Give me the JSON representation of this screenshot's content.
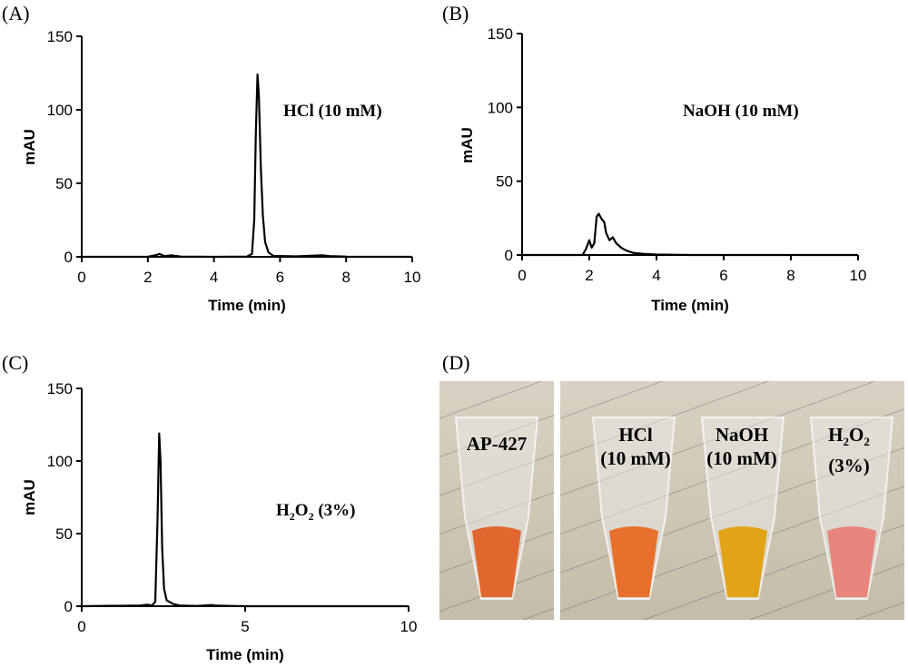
{
  "panels": {
    "a": {
      "letter": "(A)"
    },
    "b": {
      "letter": "(B)"
    },
    "c": {
      "letter": "(C)"
    },
    "d": {
      "letter": "(D)"
    }
  },
  "chart_data": [
    {
      "type": "line",
      "panel": "A",
      "annotation": "HCl (10 mM)",
      "xlabel": "Time (min)",
      "ylabel": "mAU",
      "xlim": [
        0,
        10
      ],
      "ylim": [
        0,
        150
      ],
      "xticks": [
        "0",
        "2",
        "4",
        "6",
        "8",
        "10"
      ],
      "yticks": [
        "0",
        "50",
        "100",
        "150"
      ],
      "series": [
        {
          "points": [
            [
              0,
              0
            ],
            [
              2.0,
              0
            ],
            [
              2.25,
              1.2
            ],
            [
              2.35,
              2
            ],
            [
              2.5,
              0.5
            ],
            [
              2.7,
              1
            ],
            [
              3.0,
              0.2
            ],
            [
              4.0,
              0
            ],
            [
              5.0,
              0.2
            ],
            [
              5.15,
              2
            ],
            [
              5.22,
              25
            ],
            [
              5.27,
              85
            ],
            [
              5.32,
              124
            ],
            [
              5.36,
              110
            ],
            [
              5.42,
              60
            ],
            [
              5.48,
              28
            ],
            [
              5.55,
              10
            ],
            [
              5.65,
              3
            ],
            [
              5.8,
              0.6
            ],
            [
              6.5,
              0.3
            ],
            [
              7.0,
              0.8
            ],
            [
              7.3,
              1
            ],
            [
              7.5,
              0.5
            ],
            [
              8,
              0.2
            ],
            [
              10,
              0
            ]
          ]
        }
      ]
    },
    {
      "type": "line",
      "panel": "B",
      "annotation": "NaOH (10 mM)",
      "xlabel": "Time (min)",
      "ylabel": "mAU",
      "xlim": [
        0,
        10
      ],
      "ylim": [
        0,
        150
      ],
      "xticks": [
        "0",
        "2",
        "4",
        "6",
        "8",
        "10"
      ],
      "yticks": [
        "0",
        "50",
        "100",
        "150"
      ],
      "series": [
        {
          "points": [
            [
              0,
              0
            ],
            [
              1.8,
              0
            ],
            [
              1.9,
              4
            ],
            [
              2.0,
              10
            ],
            [
              2.07,
              5
            ],
            [
              2.15,
              8
            ],
            [
              2.22,
              26
            ],
            [
              2.28,
              28
            ],
            [
              2.35,
              25
            ],
            [
              2.45,
              22
            ],
            [
              2.5,
              15
            ],
            [
              2.6,
              10
            ],
            [
              2.7,
              12
            ],
            [
              2.8,
              8
            ],
            [
              2.95,
              5
            ],
            [
              3.1,
              3
            ],
            [
              3.3,
              1.5
            ],
            [
              3.6,
              0.8
            ],
            [
              4,
              0.3
            ],
            [
              5,
              0
            ],
            [
              10,
              0
            ]
          ]
        }
      ]
    },
    {
      "type": "line",
      "panel": "C",
      "annotation": "H2O2 (3%)",
      "xlabel": "Time (min)",
      "ylabel": "mAU",
      "xlim": [
        0,
        10
      ],
      "ylim": [
        0,
        150
      ],
      "xticks": [
        "0",
        "5",
        "10"
      ],
      "yticks": [
        "0",
        "50",
        "100",
        "150"
      ],
      "series": [
        {
          "points": [
            [
              0,
              0
            ],
            [
              1.8,
              0.5
            ],
            [
              2.0,
              1
            ],
            [
              2.15,
              0.5
            ],
            [
              2.25,
              3
            ],
            [
              2.32,
              60
            ],
            [
              2.37,
              119
            ],
            [
              2.41,
              100
            ],
            [
              2.46,
              40
            ],
            [
              2.52,
              12
            ],
            [
              2.6,
              4
            ],
            [
              2.8,
              1.5
            ],
            [
              2.9,
              1
            ],
            [
              3.0,
              0.5
            ],
            [
              3.5,
              0.2
            ],
            [
              4.0,
              0.8
            ],
            [
              4.1,
              0.4
            ],
            [
              5,
              0
            ],
            [
              10,
              0
            ]
          ]
        }
      ]
    }
  ],
  "photo": {
    "tubes": [
      {
        "label_line1": "AP-427",
        "label_line2": "",
        "color": "#e2672e"
      },
      {
        "label_line1": "HCl",
        "label_line2": "(10 mM)",
        "color": "#e8702c"
      },
      {
        "label_line1": "NaOH",
        "label_line2": "(10 mM)",
        "color": "#e2a416"
      },
      {
        "label_line1": "H2O2",
        "label_line2": "(3%)",
        "color": "#e8857c"
      }
    ],
    "h2o2": {
      "h": "H",
      "two_a": "2",
      "o": "O",
      "two_b": "2"
    }
  }
}
